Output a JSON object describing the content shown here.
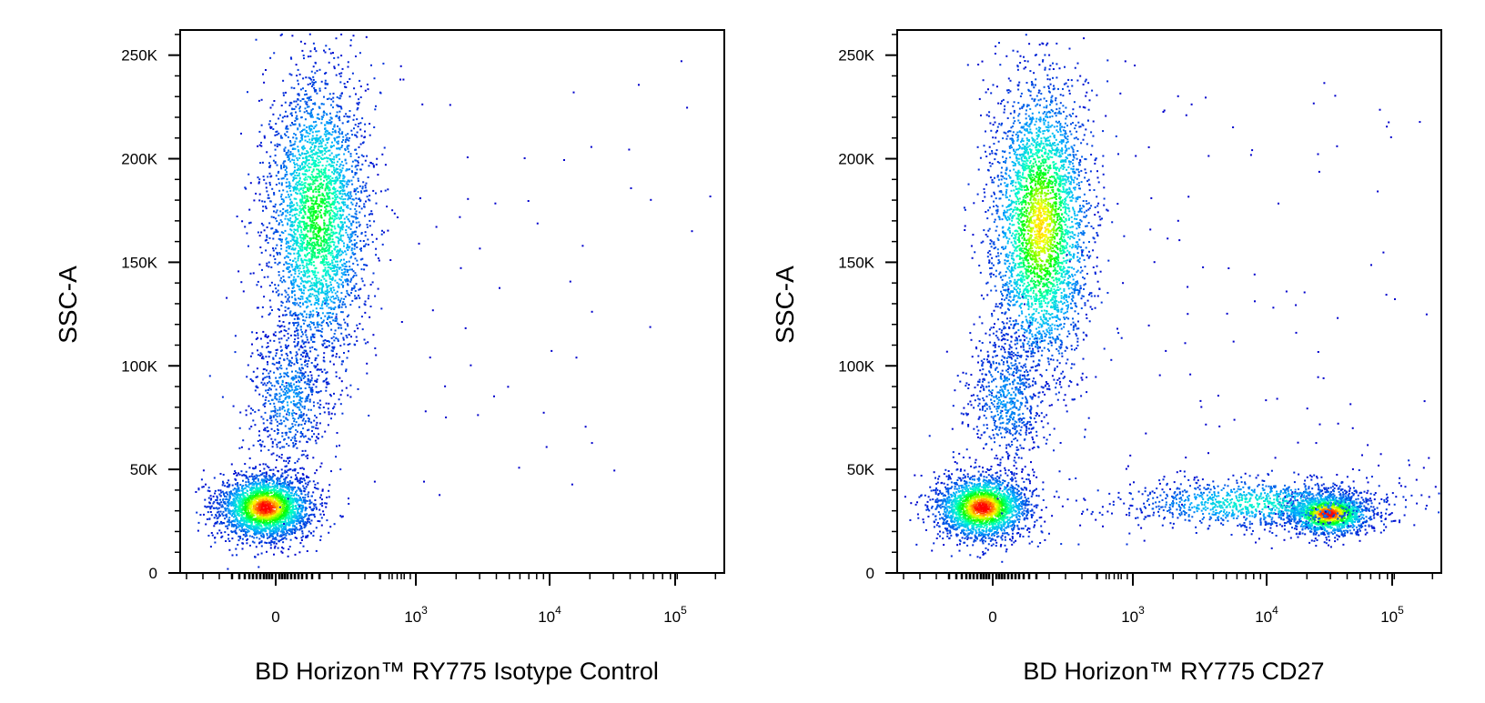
{
  "figure": {
    "panels": [
      {
        "xlabel": "BD Horizon™ RY775 Isotype Control",
        "ylabel": "SSC-A",
        "y_tick_labels": [
          "0",
          "50K",
          "100K",
          "150K",
          "200K",
          "250K"
        ],
        "x_tick_labels": [
          {
            "base": "0",
            "exp": ""
          },
          {
            "base": "10",
            "exp": "3"
          },
          {
            "base": "10",
            "exp": "4"
          },
          {
            "base": "10",
            "exp": "5"
          }
        ]
      },
      {
        "xlabel": "BD Horizon™ RY775 CD27",
        "ylabel": "SSC-A",
        "y_tick_labels": [
          "0",
          "50K",
          "100K",
          "150K",
          "200K",
          "250K"
        ],
        "x_tick_labels": [
          {
            "base": "0",
            "exp": ""
          },
          {
            "base": "10",
            "exp": "3"
          },
          {
            "base": "10",
            "exp": "4"
          },
          {
            "base": "10",
            "exp": "5"
          }
        ]
      }
    ]
  },
  "chart_data": [
    {
      "type": "scatter",
      "title": "",
      "xlabel": "BD Horizon™ RY775 Isotype Control",
      "ylabel": "SSC-A",
      "x_scale": "biexponential",
      "x_ticks": [
        0,
        1000,
        10000,
        100000
      ],
      "y_ticks": [
        0,
        50000,
        100000,
        150000,
        200000,
        250000
      ],
      "ylim": [
        0,
        262144
      ],
      "colormap": [
        "#0000cc",
        "#00ffff",
        "#00ff00",
        "#ffff00",
        "#ff0000"
      ],
      "populations": [
        {
          "x_center": 0,
          "y_center": 32000,
          "relative_density": "high"
        },
        {
          "x_center": 280,
          "y_center": 175000,
          "relative_density": "medium"
        }
      ]
    },
    {
      "type": "scatter",
      "title": "",
      "xlabel": "BD Horizon™ RY775 CD27",
      "ylabel": "SSC-A",
      "x_scale": "biexponential",
      "x_ticks": [
        0,
        1000,
        10000,
        100000
      ],
      "y_ticks": [
        0,
        50000,
        100000,
        150000,
        200000,
        250000
      ],
      "ylim": [
        0,
        262144
      ],
      "colormap": [
        "#0000cc",
        "#00ffff",
        "#00ff00",
        "#ffff00",
        "#ff0000"
      ],
      "populations": [
        {
          "x_center": 0,
          "y_center": 32000,
          "relative_density": "high"
        },
        {
          "x_center": 300,
          "y_center": 170000,
          "relative_density": "high"
        },
        {
          "x_center": 80000,
          "y_center": 30000,
          "relative_density": "high"
        }
      ]
    }
  ]
}
